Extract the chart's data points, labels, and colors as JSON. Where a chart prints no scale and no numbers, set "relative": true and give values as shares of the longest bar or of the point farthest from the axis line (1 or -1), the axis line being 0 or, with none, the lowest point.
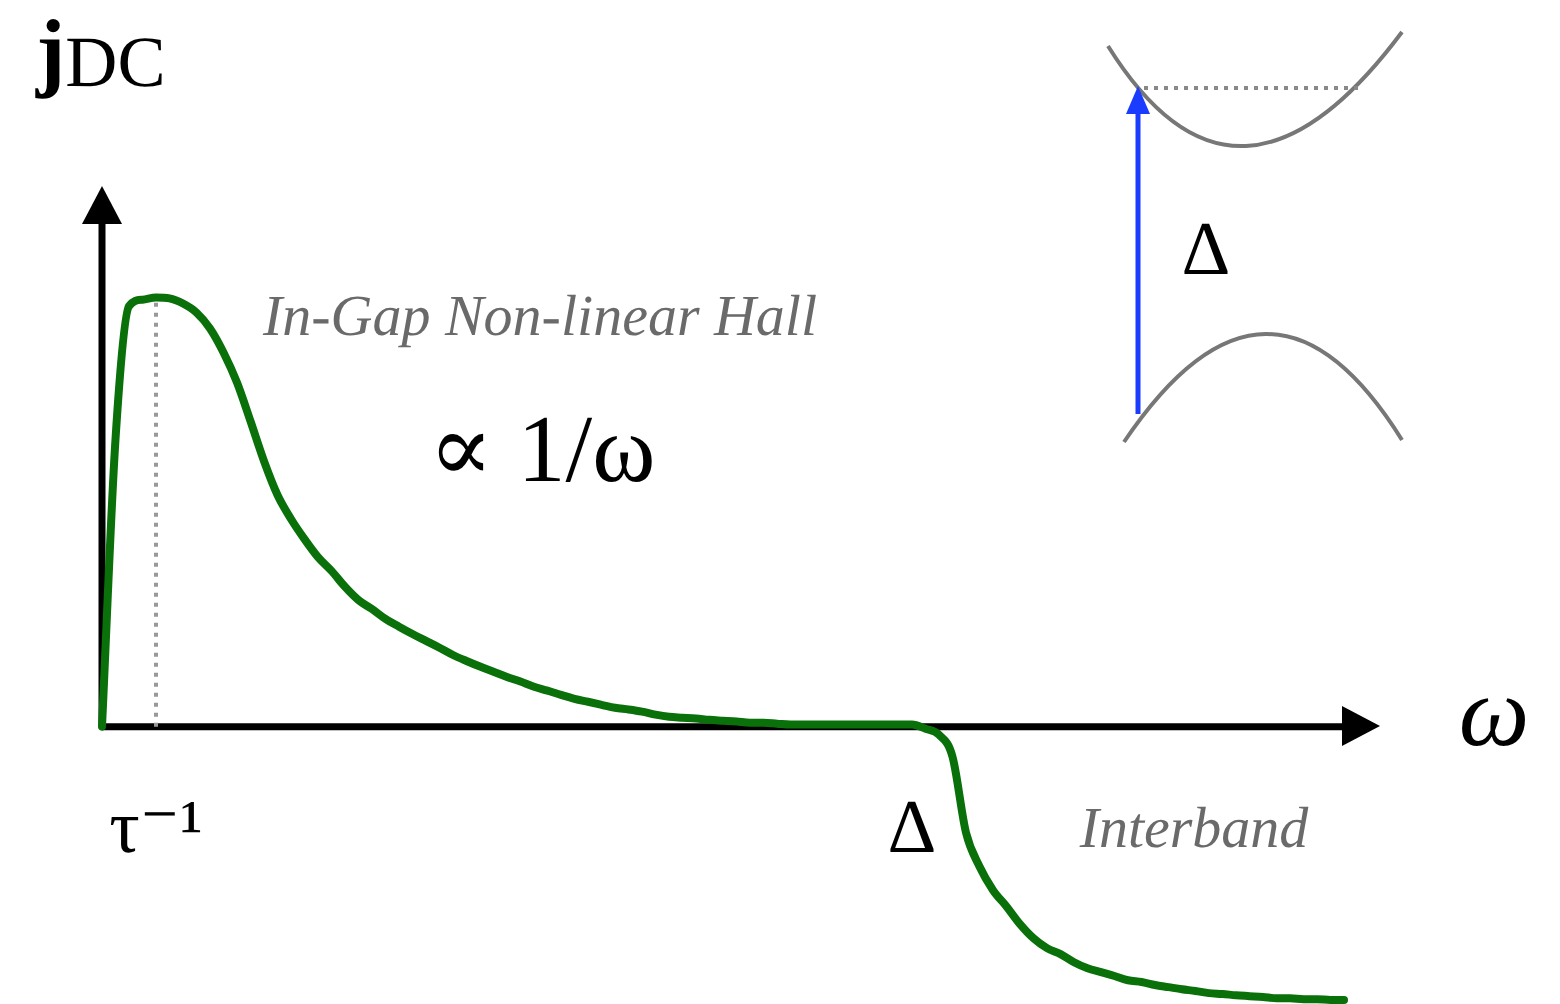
{
  "chart_data": {
    "type": "line",
    "xlabel": "ω",
    "ylabel": "j$_{DC}$",
    "relative": true,
    "categories": [
      null,
      null,
      null,
      null,
      "τ⁻¹",
      null,
      null,
      null,
      null,
      null,
      null,
      null,
      null,
      null,
      null,
      null,
      null,
      null,
      null,
      null,
      null,
      null,
      null,
      null,
      null,
      null,
      null,
      null,
      null,
      null,
      null,
      null,
      null,
      null,
      null,
      null,
      null,
      null,
      null,
      null,
      null,
      null,
      null,
      null,
      null,
      null,
      null,
      null,
      null,
      null,
      null,
      null,
      null,
      null,
      null,
      null,
      null,
      null,
      null,
      null,
      "Δ",
      null,
      null,
      null,
      null,
      null,
      null,
      null,
      null,
      null,
      null,
      null,
      null,
      null,
      null,
      null,
      null,
      null,
      null,
      null,
      null,
      null,
      null,
      null,
      null,
      null,
      null,
      null,
      null,
      null,
      null,
      null,
      null
    ],
    "series": [
      {
        "color": "#0a700a",
        "values": [
          0,
          0.67,
          0.98,
          0.995,
          1.0,
          0.998,
          0.986,
          0.965,
          0.928,
          0.872,
          0.802,
          0.712,
          0.619,
          0.54,
          0.484,
          0.437,
          0.395,
          0.363,
          0.326,
          0.295,
          0.274,
          0.251,
          0.233,
          0.216,
          0.2,
          0.184,
          0.167,
          0.153,
          0.14,
          0.128,
          0.116,
          0.105,
          0.093,
          0.084,
          0.074,
          0.065,
          0.058,
          0.051,
          0.044,
          0.04,
          0.035,
          0.028,
          0.023,
          0.021,
          0.019,
          0.016,
          0.014,
          0.012,
          0.009,
          0.009,
          0.007,
          0.005,
          0.005,
          0.005,
          0.005,
          0.005,
          0.005,
          0.005,
          0.005,
          0.005,
          0.005,
          -0.005,
          -0.019,
          -0.07,
          -0.247,
          -0.326,
          -0.381,
          -0.419,
          -0.46,
          -0.493,
          -0.516,
          -0.53,
          -0.549,
          -0.563,
          -0.572,
          -0.581,
          -0.591,
          -0.595,
          -0.602,
          -0.607,
          -0.612,
          -0.616,
          -0.621,
          -0.623,
          -0.626,
          -0.628,
          -0.63,
          -0.633,
          -0.633,
          -0.635,
          -0.635,
          -0.637,
          -0.637
        ]
      }
    ],
    "ref_lines": [
      {
        "axis": "x",
        "value": "τ⁻¹",
        "line_style": "dotted",
        "color": "#999999"
      }
    ],
    "annotations": [
      "In-Gap Non-linear Hall",
      "∝ 1/ω",
      "Interband",
      "Δ"
    ],
    "marker": "none"
  }
}
